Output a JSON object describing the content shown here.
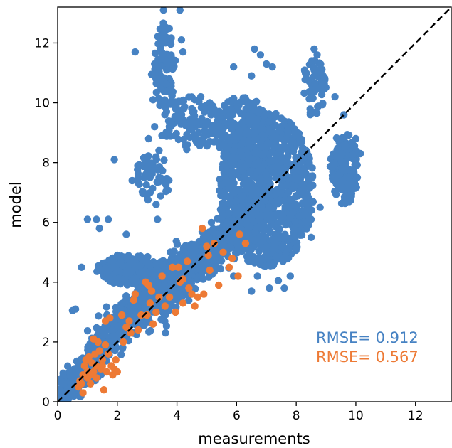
{
  "chart_data": {
    "type": "scatter",
    "title": "",
    "xlabel": "measurements",
    "ylabel": "model",
    "xlim": [
      0,
      13.2
    ],
    "ylim": [
      0,
      13.2
    ],
    "xticks": [
      0,
      2,
      4,
      6,
      8,
      10,
      12
    ],
    "yticks": [
      0,
      2,
      4,
      6,
      8,
      10,
      12
    ],
    "grid": false,
    "reference_line": {
      "style": "dashed",
      "color": "#000000",
      "x": [
        0,
        13.2
      ],
      "y": [
        0,
        13.2
      ]
    },
    "series": [
      {
        "color": "#4682c3",
        "clusters": [
          {
            "kind": "band",
            "x_range": [
              0.0,
              1.5
            ],
            "slope": 0.95,
            "offset": 0.15,
            "spread": 0.55,
            "count": 260
          },
          {
            "kind": "band",
            "x_range": [
              1.0,
              4.5
            ],
            "slope": 1.0,
            "offset": 0.35,
            "spread": 0.75,
            "count": 720
          },
          {
            "kind": "band",
            "x_range": [
              3.5,
              7.0
            ],
            "slope": 0.95,
            "offset": 0.2,
            "spread": 0.8,
            "count": 720
          },
          {
            "kind": "blob",
            "center": [
              7.0,
              7.1
            ],
            "radius": [
              1.6,
              2.6
            ],
            "count": 900
          },
          {
            "kind": "blob",
            "center": [
              9.6,
              7.8
            ],
            "radius": [
              0.5,
              1.2
            ],
            "count": 150
          },
          {
            "kind": "blob",
            "center": [
              6.2,
              9.0
            ],
            "radius": [
              1.0,
              1.2
            ],
            "count": 200
          },
          {
            "kind": "blob",
            "center": [
              2.5,
              4.4
            ],
            "radius": [
              1.2,
              0.5
            ],
            "count": 220
          },
          {
            "kind": "blob",
            "center": [
              3.6,
              11.2
            ],
            "radius": [
              0.35,
              1.5
            ],
            "count": 90
          },
          {
            "kind": "blob",
            "center": [
              4.5,
              9.3
            ],
            "radius": [
              1.0,
              0.9
            ],
            "count": 110
          },
          {
            "kind": "blob",
            "center": [
              8.6,
              10.5
            ],
            "radius": [
              0.4,
              1.0
            ],
            "count": 60
          },
          {
            "kind": "blob",
            "center": [
              3.2,
              7.5
            ],
            "radius": [
              0.6,
              0.8
            ],
            "count": 50
          }
        ],
        "points": [
          [
            3.55,
            13.1
          ],
          [
            4.1,
            13.1
          ],
          [
            3.5,
            12.5
          ],
          [
            3.45,
            12.0
          ],
          [
            3.25,
            11.3
          ],
          [
            3.15,
            10.95
          ],
          [
            3.3,
            10.8
          ],
          [
            4.15,
            12.1
          ],
          [
            4.2,
            11.7
          ],
          [
            3.2,
            10.1
          ],
          [
            3.25,
            9.2
          ],
          [
            3.5,
            8.9
          ],
          [
            3.05,
            8.8
          ],
          [
            3.4,
            8.4
          ],
          [
            3.0,
            8.0
          ],
          [
            3.1,
            7.5
          ],
          [
            3.0,
            6.9
          ],
          [
            3.3,
            6.6
          ],
          [
            3.35,
            6.1
          ],
          [
            1.0,
            6.1
          ],
          [
            1.3,
            6.1
          ],
          [
            1.7,
            6.1
          ],
          [
            1.4,
            5.8
          ],
          [
            0.8,
            4.5
          ],
          [
            0.6,
            3.1
          ],
          [
            0.5,
            3.05
          ],
          [
            5.2,
            5.0
          ],
          [
            5.9,
            4.2
          ],
          [
            6.7,
            4.2
          ],
          [
            7.4,
            4.05
          ],
          [
            7.8,
            4.2
          ],
          [
            7.6,
            3.8
          ],
          [
            7.1,
            3.8
          ],
          [
            6.5,
            3.7
          ],
          [
            6.6,
            5.4
          ],
          [
            8.5,
            6.1
          ],
          [
            8.8,
            6.5
          ],
          [
            8.5,
            5.5
          ],
          [
            6.6,
            11.8
          ],
          [
            6.8,
            11.6
          ],
          [
            7.0,
            11.3
          ],
          [
            7.2,
            11.2
          ],
          [
            5.9,
            11.2
          ],
          [
            6.5,
            10.9
          ],
          [
            8.7,
            11.6
          ],
          [
            8.6,
            11.8
          ],
          [
            8.9,
            10.9
          ],
          [
            9.3,
            10.2
          ],
          [
            9.6,
            9.6
          ],
          [
            10.0,
            8.8
          ],
          [
            10.15,
            8.3
          ],
          [
            10.05,
            7.5
          ],
          [
            9.9,
            7.2
          ],
          [
            9.8,
            6.9
          ],
          [
            1.9,
            8.1
          ],
          [
            4.6,
            10.1
          ],
          [
            4.8,
            10.2
          ],
          [
            5.1,
            10.0
          ],
          [
            5.9,
            10.1
          ],
          [
            6.1,
            10.0
          ],
          [
            4.5,
            9.1
          ],
          [
            4.35,
            8.6
          ],
          [
            2.6,
            11.7
          ],
          [
            2.5,
            7.4
          ],
          [
            2.3,
            5.6
          ],
          [
            2.0,
            4.9
          ]
        ]
      },
      {
        "color": "#ed7a35",
        "points": [
          [
            0.7,
            0.5
          ],
          [
            0.75,
            0.7
          ],
          [
            0.8,
            0.6
          ],
          [
            0.85,
            0.9
          ],
          [
            0.9,
            1.2
          ],
          [
            1.0,
            0.8
          ],
          [
            1.05,
            1.5
          ],
          [
            1.1,
            0.6
          ],
          [
            1.15,
            1.3
          ],
          [
            1.2,
            1.0
          ],
          [
            1.25,
            1.6
          ],
          [
            1.3,
            1.2
          ],
          [
            1.35,
            2.0
          ],
          [
            1.4,
            1.7
          ],
          [
            1.45,
            1.1
          ],
          [
            1.5,
            1.4
          ],
          [
            1.55,
            0.4
          ],
          [
            1.6,
            1.9
          ],
          [
            1.65,
            1.0
          ],
          [
            1.7,
            1.6
          ],
          [
            1.75,
            2.8
          ],
          [
            1.8,
            1.2
          ],
          [
            1.85,
            0.9
          ],
          [
            1.1,
            0.9
          ],
          [
            0.95,
            1.4
          ],
          [
            1.2,
            2.1
          ],
          [
            1.6,
            2.7
          ],
          [
            1.9,
            1.1
          ],
          [
            2.15,
            2.9
          ],
          [
            2.3,
            2.5
          ],
          [
            2.4,
            2.7
          ],
          [
            2.45,
            2.3
          ],
          [
            2.55,
            3.4
          ],
          [
            2.6,
            3.6
          ],
          [
            2.8,
            2.9
          ],
          [
            2.95,
            4.0
          ],
          [
            3.05,
            3.9
          ],
          [
            3.1,
            3.3
          ],
          [
            3.15,
            3.7
          ],
          [
            3.2,
            2.6
          ],
          [
            3.3,
            3.0
          ],
          [
            3.4,
            3.5
          ],
          [
            3.5,
            4.2
          ],
          [
            3.6,
            3.2
          ],
          [
            3.75,
            3.5
          ],
          [
            3.85,
            4.5
          ],
          [
            3.95,
            3.0
          ],
          [
            4.05,
            4.5
          ],
          [
            4.1,
            4.0
          ],
          [
            4.2,
            4.1
          ],
          [
            4.35,
            4.7
          ],
          [
            4.4,
            3.8
          ],
          [
            4.5,
            3.6
          ],
          [
            4.6,
            3.2
          ],
          [
            4.2,
            3.3
          ],
          [
            4.7,
            3.5
          ],
          [
            4.9,
            3.6
          ],
          [
            5.0,
            5.2
          ],
          [
            5.05,
            4.9
          ],
          [
            5.1,
            4.4
          ],
          [
            5.4,
            3.9
          ],
          [
            5.55,
            5.0
          ],
          [
            5.75,
            4.5
          ],
          [
            5.85,
            4.8
          ],
          [
            6.05,
            4.2
          ],
          [
            6.1,
            5.6
          ],
          [
            6.3,
            5.3
          ],
          [
            4.85,
            5.8
          ],
          [
            5.25,
            5.3
          ],
          [
            2.0,
            1.0
          ],
          [
            1.0,
            1.0
          ],
          [
            0.85,
            0.3
          ],
          [
            1.3,
            0.8
          ],
          [
            1.5,
            1.2
          ],
          [
            1.95,
            1.4
          ],
          [
            2.2,
            2.0
          ],
          [
            2.7,
            2.4
          ],
          [
            3.0,
            2.9
          ]
        ]
      }
    ],
    "annotations": [
      {
        "text": "RMSE= 0.912",
        "color": "#4682c3"
      },
      {
        "text": "RMSE= 0.567",
        "color": "#ed7a35"
      }
    ]
  }
}
